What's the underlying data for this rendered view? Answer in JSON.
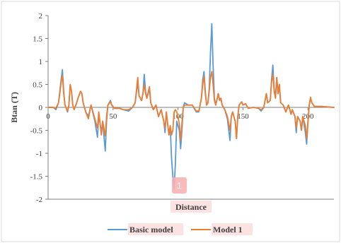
{
  "chart_data": {
    "type": "line",
    "title": "",
    "xlabel": "Distance",
    "ylabel": "Btan (T)",
    "xlim": [
      0,
      220
    ],
    "ylim": [
      -2,
      2
    ],
    "xticks": [
      0,
      50,
      100,
      150,
      200
    ],
    "yticks": [
      -2,
      -1.5,
      -1,
      -0.5,
      0,
      0.5,
      1,
      1.5,
      2
    ],
    "xtick_labels": [
      "0",
      "50",
      "100",
      "150",
      "200"
    ],
    "ytick_labels": [
      "-2",
      "-1.5",
      "-1",
      "-0.5",
      "0",
      "0.5",
      "1",
      "1.5",
      "2"
    ],
    "grid": false,
    "legend_position": "bottom",
    "badge_label": "1",
    "series": [
      {
        "name": "Basic model",
        "color": "#5B9BD5",
        "points": [
          [
            0,
            0
          ],
          [
            4,
            0
          ],
          [
            6,
            -0.05
          ],
          [
            8,
            0.1
          ],
          [
            9,
            0.35
          ],
          [
            10,
            0.6
          ],
          [
            11,
            0.82
          ],
          [
            12,
            0.35
          ],
          [
            13,
            0.05
          ],
          [
            15,
            -0.1
          ],
          [
            16,
            0.05
          ],
          [
            17,
            0.48
          ],
          [
            18,
            0.35
          ],
          [
            19,
            0.05
          ],
          [
            20,
            -0.05
          ],
          [
            22,
            0.1
          ],
          [
            23,
            0.2
          ],
          [
            25,
            0.35
          ],
          [
            26,
            0.3
          ],
          [
            27,
            0.1
          ],
          [
            29,
            -0.1
          ],
          [
            31,
            -0.2
          ],
          [
            33,
            0.05
          ],
          [
            36,
            -0.3
          ],
          [
            38,
            -0.65
          ],
          [
            39,
            -0.15
          ],
          [
            41,
            -0.55
          ],
          [
            42,
            -0.3
          ],
          [
            44,
            -0.95
          ],
          [
            45,
            -0.3
          ],
          [
            46,
            0.05
          ],
          [
            48,
            0.15
          ],
          [
            49,
            0.05
          ],
          [
            51,
            -0.02
          ],
          [
            55,
            -0.02
          ],
          [
            58,
            -0.05
          ],
          [
            62,
            -0.08
          ],
          [
            65,
            0
          ],
          [
            67,
            0.1
          ],
          [
            69,
            0.55
          ],
          [
            70,
            0.25
          ],
          [
            72,
            0.15
          ],
          [
            73,
            0.3
          ],
          [
            74,
            0.72
          ],
          [
            75,
            0.35
          ],
          [
            76,
            0.2
          ],
          [
            78,
            0.4
          ],
          [
            79,
            0.1
          ],
          [
            81,
            -0.05
          ],
          [
            83,
            0.05
          ],
          [
            85,
            -0.2
          ],
          [
            87,
            -0.05
          ],
          [
            89,
            -0.3
          ],
          [
            90,
            -0.55
          ],
          [
            91,
            -0.1
          ],
          [
            93,
            -0.6
          ],
          [
            94,
            -0.4
          ],
          [
            95,
            -1.1
          ],
          [
            96,
            -1.5
          ],
          [
            97,
            -1.78
          ],
          [
            98,
            -1.2
          ],
          [
            99,
            -0.3
          ],
          [
            101,
            -0.5
          ],
          [
            102,
            -0.9
          ],
          [
            103,
            -0.5
          ],
          [
            104,
            0
          ],
          [
            105,
            0.1
          ],
          [
            108,
            0.05
          ],
          [
            111,
            0.05
          ],
          [
            114,
            -0.1
          ],
          [
            116,
            -0.1
          ],
          [
            118,
            0.2
          ],
          [
            119,
            0.6
          ],
          [
            120,
            0.78
          ],
          [
            121,
            0.35
          ],
          [
            122,
            0.05
          ],
          [
            123,
            0.1
          ],
          [
            124,
            0.4
          ],
          [
            125,
            1.2
          ],
          [
            126,
            1.82
          ],
          [
            127,
            0.9
          ],
          [
            128,
            0.2
          ],
          [
            129,
            0.05
          ],
          [
            131,
            0.3
          ],
          [
            132,
            0.15
          ],
          [
            133,
            0.2
          ],
          [
            134,
            0.05
          ],
          [
            136,
            -0.05
          ],
          [
            138,
            -0.25
          ],
          [
            140,
            -0.72
          ],
          [
            141,
            -0.2
          ],
          [
            142,
            -0.1
          ],
          [
            144,
            -0.3
          ],
          [
            145,
            -0.68
          ],
          [
            146,
            -0.2
          ],
          [
            147,
            0.05
          ],
          [
            149,
            0.12
          ],
          [
            150,
            0.05
          ],
          [
            152,
            0.08
          ],
          [
            154,
            -0.02
          ],
          [
            158,
            0
          ],
          [
            162,
            -0.02
          ],
          [
            164,
            -0.08
          ],
          [
            166,
            0
          ],
          [
            168,
            0.3
          ],
          [
            169,
            0.1
          ],
          [
            171,
            0.15
          ],
          [
            172,
            0.6
          ],
          [
            173,
            0.92
          ],
          [
            174,
            0.4
          ],
          [
            175,
            0.2
          ],
          [
            176,
            0.65
          ],
          [
            177,
            0.3
          ],
          [
            178,
            0.5
          ],
          [
            179,
            0.1
          ],
          [
            181,
            0.05
          ],
          [
            183,
            -0.1
          ],
          [
            185,
            0.05
          ],
          [
            187,
            -0.15
          ],
          [
            188,
            -0.05
          ],
          [
            190,
            -0.2
          ],
          [
            191,
            -0.55
          ],
          [
            192,
            -0.2
          ],
          [
            194,
            -0.3
          ],
          [
            195,
            -0.5
          ],
          [
            196,
            -0.2
          ],
          [
            198,
            -0.55
          ],
          [
            199,
            -0.8
          ],
          [
            200,
            -0.35
          ],
          [
            201,
            0.05
          ],
          [
            202,
            0.2
          ],
          [
            203,
            0.1
          ],
          [
            205,
            0.02
          ],
          [
            210,
            0.02
          ],
          [
            220,
            0
          ]
        ]
      },
      {
        "name": "Model 1",
        "color": "#ED7D31",
        "points": [
          [
            0,
            0
          ],
          [
            4,
            0
          ],
          [
            6,
            -0.02
          ],
          [
            8,
            0.1
          ],
          [
            9,
            0.3
          ],
          [
            10,
            0.55
          ],
          [
            11,
            0.7
          ],
          [
            12,
            0.3
          ],
          [
            13,
            0.05
          ],
          [
            15,
            -0.08
          ],
          [
            16,
            0.05
          ],
          [
            17,
            0.5
          ],
          [
            18,
            0.35
          ],
          [
            19,
            0.05
          ],
          [
            20,
            -0.05
          ],
          [
            22,
            0.1
          ],
          [
            23,
            0.2
          ],
          [
            25,
            0.35
          ],
          [
            26,
            0.3
          ],
          [
            27,
            0.1
          ],
          [
            29,
            -0.1
          ],
          [
            31,
            -0.25
          ],
          [
            33,
            0.05
          ],
          [
            36,
            -0.25
          ],
          [
            38,
            -0.45
          ],
          [
            39,
            -0.1
          ],
          [
            41,
            -0.6
          ],
          [
            42,
            -0.3
          ],
          [
            44,
            -0.62
          ],
          [
            45,
            -0.2
          ],
          [
            46,
            0.05
          ],
          [
            48,
            0.12
          ],
          [
            49,
            0.05
          ],
          [
            51,
            -0.02
          ],
          [
            55,
            -0.02
          ],
          [
            58,
            -0.05
          ],
          [
            62,
            -0.05
          ],
          [
            65,
            0
          ],
          [
            67,
            0.1
          ],
          [
            69,
            0.65
          ],
          [
            70,
            0.25
          ],
          [
            72,
            0.15
          ],
          [
            73,
            0.3
          ],
          [
            74,
            0.5
          ],
          [
            75,
            0.3
          ],
          [
            76,
            0.2
          ],
          [
            78,
            0.45
          ],
          [
            79,
            0.1
          ],
          [
            81,
            -0.05
          ],
          [
            83,
            0.05
          ],
          [
            85,
            -0.2
          ],
          [
            87,
            -0.05
          ],
          [
            89,
            -0.3
          ],
          [
            90,
            -0.45
          ],
          [
            91,
            -0.1
          ],
          [
            93,
            -0.6
          ],
          [
            94,
            -0.4
          ],
          [
            95,
            -0.6
          ],
          [
            96,
            -0.5
          ],
          [
            97,
            -0.1
          ],
          [
            98,
            -0.05
          ],
          [
            99,
            -0.1
          ],
          [
            101,
            -0.35
          ],
          [
            102,
            -0.72
          ],
          [
            103,
            -0.35
          ],
          [
            104,
            0
          ],
          [
            105,
            0.05
          ],
          [
            108,
            0.05
          ],
          [
            111,
            0.05
          ],
          [
            114,
            -0.08
          ],
          [
            116,
            -0.08
          ],
          [
            118,
            0.2
          ],
          [
            119,
            0.5
          ],
          [
            120,
            0.68
          ],
          [
            121,
            0.3
          ],
          [
            122,
            0.05
          ],
          [
            123,
            0.1
          ],
          [
            124,
            0.35
          ],
          [
            125,
            0.65
          ],
          [
            126,
            0.78
          ],
          [
            127,
            0.5
          ],
          [
            128,
            0.15
          ],
          [
            129,
            0.05
          ],
          [
            131,
            0.3
          ],
          [
            132,
            0.15
          ],
          [
            133,
            0.2
          ],
          [
            134,
            0.05
          ],
          [
            136,
            -0.05
          ],
          [
            138,
            -0.2
          ],
          [
            140,
            -0.5
          ],
          [
            141,
            -0.2
          ],
          [
            142,
            -0.1
          ],
          [
            144,
            -0.3
          ],
          [
            145,
            -0.68
          ],
          [
            146,
            -0.2
          ],
          [
            147,
            0.05
          ],
          [
            149,
            0.12
          ],
          [
            150,
            0.05
          ],
          [
            152,
            0.08
          ],
          [
            154,
            -0.02
          ],
          [
            158,
            0
          ],
          [
            162,
            -0.02
          ],
          [
            164,
            -0.05
          ],
          [
            166,
            0
          ],
          [
            168,
            0.3
          ],
          [
            169,
            0.1
          ],
          [
            171,
            0.15
          ],
          [
            172,
            0.55
          ],
          [
            173,
            0.72
          ],
          [
            174,
            0.35
          ],
          [
            175,
            0.2
          ],
          [
            176,
            0.65
          ],
          [
            177,
            0.3
          ],
          [
            178,
            0.5
          ],
          [
            179,
            0.1
          ],
          [
            181,
            0.05
          ],
          [
            183,
            -0.1
          ],
          [
            185,
            0.05
          ],
          [
            187,
            -0.15
          ],
          [
            188,
            -0.05
          ],
          [
            190,
            -0.2
          ],
          [
            191,
            -0.45
          ],
          [
            192,
            -0.2
          ],
          [
            194,
            -0.3
          ],
          [
            195,
            -0.5
          ],
          [
            196,
            -0.2
          ],
          [
            198,
            -0.4
          ],
          [
            199,
            -0.68
          ],
          [
            200,
            -0.3
          ],
          [
            201,
            0.05
          ],
          [
            202,
            0.22
          ],
          [
            203,
            0.1
          ],
          [
            205,
            0.02
          ],
          [
            210,
            0.02
          ],
          [
            220,
            0
          ]
        ]
      }
    ]
  }
}
